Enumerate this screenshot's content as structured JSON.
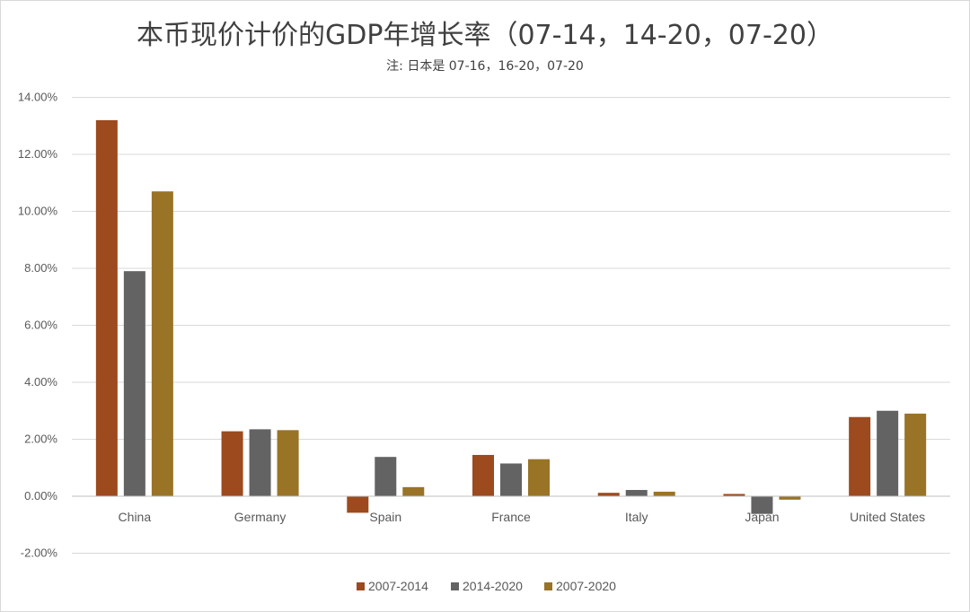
{
  "chart_data": {
    "type": "bar",
    "title": "本币现价计价的GDP年增长率（07-14，14-20，07-20）",
    "subtitle": "注: 日本是 07-16，16-20，07-20",
    "categories": [
      "China",
      "Germany",
      "Spain",
      "France",
      "Italy",
      "Japan",
      "United States"
    ],
    "series": [
      {
        "name": "2007-2014",
        "color": "#9C4A1E",
        "values": [
          13.2,
          2.28,
          -0.58,
          1.45,
          0.12,
          0.08,
          2.78
        ]
      },
      {
        "name": "2014-2020",
        "color": "#636363",
        "values": [
          7.9,
          2.35,
          1.38,
          1.15,
          0.22,
          -0.62,
          3.0
        ]
      },
      {
        "name": "2007-2020",
        "color": "#997326",
        "values": [
          10.7,
          2.32,
          0.32,
          1.3,
          0.16,
          -0.12,
          2.9
        ]
      }
    ],
    "ylim": [
      -2,
      14
    ],
    "yticks": [
      -2,
      0,
      2,
      4,
      6,
      8,
      10,
      12,
      14
    ],
    "ytick_labels": [
      "-2.00%",
      "0.00%",
      "2.00%",
      "4.00%",
      "6.00%",
      "8.00%",
      "10.00%",
      "12.00%",
      "14.00%"
    ],
    "grid": true,
    "legend_position": "bottom"
  }
}
